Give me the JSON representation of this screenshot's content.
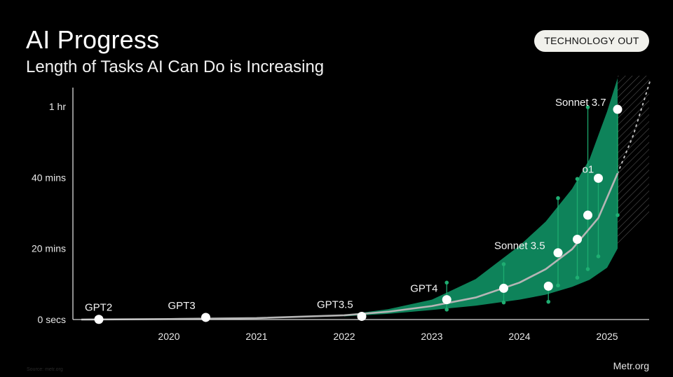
{
  "header": {
    "title": "AI Progress",
    "subtitle": "Length of Tasks AI Can Do is Increasing",
    "badge": "TECHNOLOGY OUT"
  },
  "footer": {
    "source": "Metr.org",
    "note": "Source: metr.org"
  },
  "colors": {
    "background": "#000000",
    "band": "#0f8a5f",
    "trend": "#b5b5b5",
    "points": "#ffffff",
    "whiskers": "#1fae72"
  },
  "chart_data": {
    "type": "scatter",
    "title": "AI Progress",
    "subtitle": "Length of Tasks AI Can Do is Increasing",
    "y_unit": "minutes",
    "ylim": [
      0,
      65
    ],
    "xlim": [
      2019.0,
      2025.55
    ],
    "x_ticks": [
      {
        "value": 2020,
        "label": "2020"
      },
      {
        "value": 2021,
        "label": "2021"
      },
      {
        "value": 2022,
        "label": "2022"
      },
      {
        "value": 2023,
        "label": "2023"
      },
      {
        "value": 2024,
        "label": "2024"
      },
      {
        "value": 2025,
        "label": "2025"
      }
    ],
    "y_ticks": [
      {
        "value": 0,
        "label": "0 secs"
      },
      {
        "value": 20,
        "label": "20 mins"
      },
      {
        "value": 40,
        "label": "40 mins"
      },
      {
        "value": 60,
        "label": "1 hr"
      }
    ],
    "grid": false,
    "points": [
      {
        "label": "GPT2",
        "x": 2019.2,
        "y": 0.05,
        "low": null,
        "high": null
      },
      {
        "label": "GPT3",
        "x": 2020.42,
        "y": 0.6,
        "low": null,
        "high": null
      },
      {
        "label": "GPT3.5",
        "x": 2022.2,
        "y": 0.9,
        "low": null,
        "high": null
      },
      {
        "label": "GPT4",
        "x": 2023.17,
        "y": 5.6,
        "low": 2.8,
        "high": 10.4
      },
      {
        "label": "",
        "x": 2023.82,
        "y": 8.8,
        "low": 4.8,
        "high": 15.6
      },
      {
        "label": "",
        "x": 2024.33,
        "y": 9.4,
        "low": 5.0,
        "high": null
      },
      {
        "label": "Sonnet 3.5",
        "x": 2024.44,
        "y": 18.8,
        "low": 9.6,
        "high": 34.2
      },
      {
        "label": "",
        "x": 2024.66,
        "y": 22.6,
        "low": 11.8,
        "high": 39.6
      },
      {
        "label": "",
        "x": 2024.78,
        "y": 29.4,
        "low": 14.2,
        "high": 59.8
      },
      {
        "label": "o1",
        "x": 2024.9,
        "y": 39.8,
        "low": 17.8,
        "high": null
      },
      {
        "label": "Sonnet 3.7",
        "x": 2025.12,
        "y": 59.2,
        "low": 29.4,
        "high": null
      }
    ],
    "trend_line": {
      "x": [
        2019.0,
        2020.0,
        2021.0,
        2022.0,
        2022.5,
        2023.0,
        2023.5,
        2024.0,
        2024.3,
        2024.6,
        2024.9,
        2025.12
      ],
      "y": [
        0.0,
        0.15,
        0.4,
        1.2,
        2.2,
        3.8,
        6.2,
        10.4,
        14.2,
        19.8,
        28.6,
        41.2
      ]
    },
    "confidence_band": {
      "x": [
        2022.0,
        2022.5,
        2023.0,
        2023.5,
        2024.0,
        2024.3,
        2024.6,
        2024.8,
        2025.0,
        2025.12
      ],
      "low": [
        0.9,
        1.6,
        2.7,
        3.9,
        5.6,
        7.0,
        9.2,
        11.2,
        14.6,
        20.0
      ],
      "high": [
        1.3,
        2.9,
        5.6,
        11.4,
        20.8,
        27.6,
        36.8,
        45.2,
        58.6,
        68.0
      ]
    },
    "projection": {
      "x": [
        2025.12,
        2025.3,
        2025.5
      ],
      "y": [
        41.2,
        52.0,
        68.0
      ]
    }
  }
}
